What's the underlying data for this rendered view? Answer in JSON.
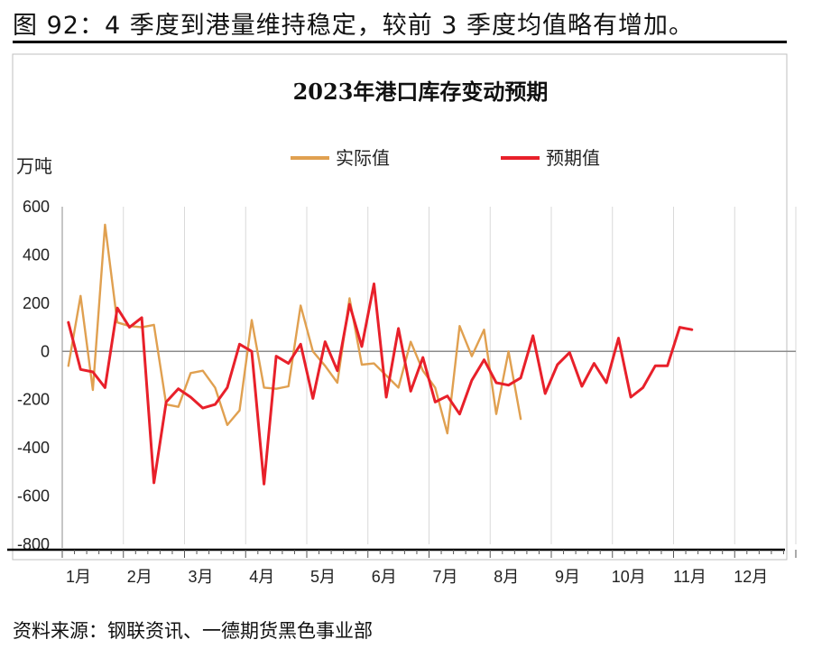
{
  "caption": "图 92：4 季度到港量维持稳定，较前 3 季度均值略有增加。",
  "source": "资料来源：钢联资讯、一德期货黑色事业部",
  "chart_data": {
    "type": "line",
    "title": "2023年港口库存变动预期",
    "ylabel": "万吨",
    "ylim": [
      -800,
      600
    ],
    "yticks": [
      "600",
      "400",
      "200",
      "0",
      "-200",
      "-400",
      "-600",
      "-800"
    ],
    "month_labels": [
      "1月",
      "2月",
      "3月",
      "4月",
      "5月",
      "6月",
      "7月",
      "8月",
      "9月",
      "10月",
      "11月",
      "12月"
    ],
    "x_ticks_per_month": 5,
    "grid": "vertical",
    "legend_position": "top",
    "series": [
      {
        "name": "实际值",
        "color": "#E0A050",
        "values": [
          -60,
          230,
          -160,
          525,
          120,
          105,
          100,
          110,
          -220,
          -230,
          -90,
          -80,
          -150,
          -305,
          -245,
          130,
          -150,
          -155,
          -145,
          190,
          0,
          -60,
          -130,
          220,
          -55,
          -50,
          -100,
          -150,
          40,
          -80,
          -150,
          -340,
          105,
          -20,
          90,
          -260,
          0,
          -280
        ]
      },
      {
        "name": "预期值",
        "color": "#E8202A",
        "values": [
          120,
          -75,
          -85,
          -150,
          180,
          100,
          140,
          -545,
          -210,
          -155,
          -190,
          -235,
          -220,
          -150,
          30,
          0,
          -550,
          -20,
          -50,
          30,
          -195,
          40,
          -80,
          195,
          20,
          280,
          -190,
          95,
          -165,
          -25,
          -210,
          -185,
          -260,
          -120,
          -35,
          -130,
          -140,
          -110,
          65,
          -175,
          -55,
          -5,
          -145,
          -50,
          -130,
          55,
          -190,
          -150,
          -60,
          -60,
          100,
          90
        ]
      }
    ]
  }
}
